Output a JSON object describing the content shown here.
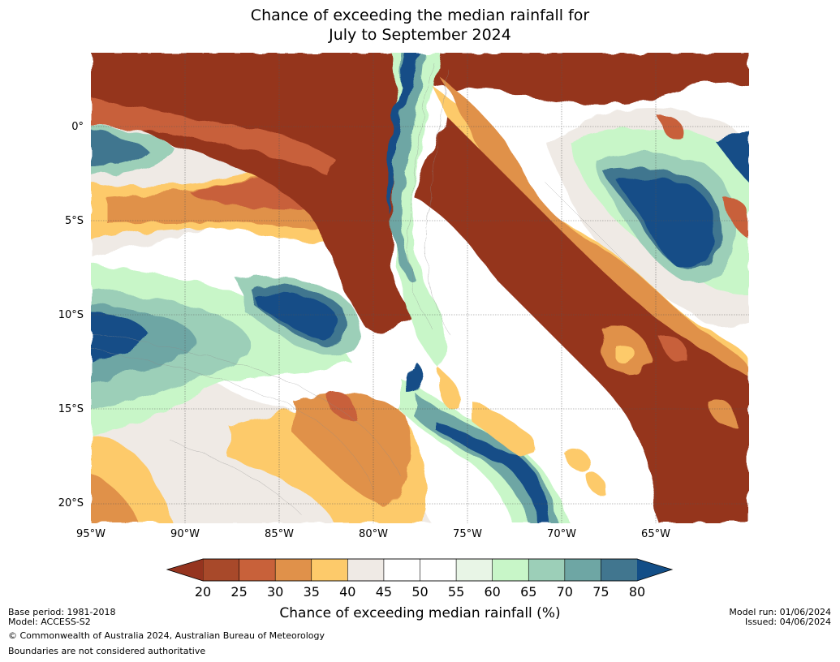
{
  "title_line1": "Chance of exceeding the median rainfall for",
  "title_line2": "July to September 2024",
  "lat_labels": [
    "0°",
    "5°S",
    "10°S",
    "15°S",
    "20°S"
  ],
  "lon_labels": [
    "95°W",
    "90°W",
    "85°W",
    "80°W",
    "75°W",
    "70°W",
    "65°W"
  ],
  "colorbar": {
    "label": "Chance of exceeding median rainfall (%)",
    "ticks": [
      "20",
      "25",
      "30",
      "35",
      "40",
      "45",
      "50",
      "55",
      "60",
      "65",
      "70",
      "75",
      "80"
    ],
    "colors": [
      "#a8492a",
      "#c8613a",
      "#e0914a",
      "#fdca6a",
      "#efeae5",
      "#ffffff",
      "#ffffff",
      "#e8f5e6",
      "#c8f6c8",
      "#9ccfb8",
      "#6ea6a4",
      "#41768f"
    ],
    "under_color": "#95341f",
    "over_color": "#134e87"
  },
  "footer": {
    "base_period": "Base period: 1981-2018",
    "model": "Model: ACCESS-S2",
    "copyright": "© Commonwealth of Australia 2024, Australian Bureau of Meteorology",
    "boundaries": "Boundaries are not considered authoritative",
    "model_run": "Model run: 01/06/2024",
    "issued": "Issued: 04/06/2024"
  }
}
